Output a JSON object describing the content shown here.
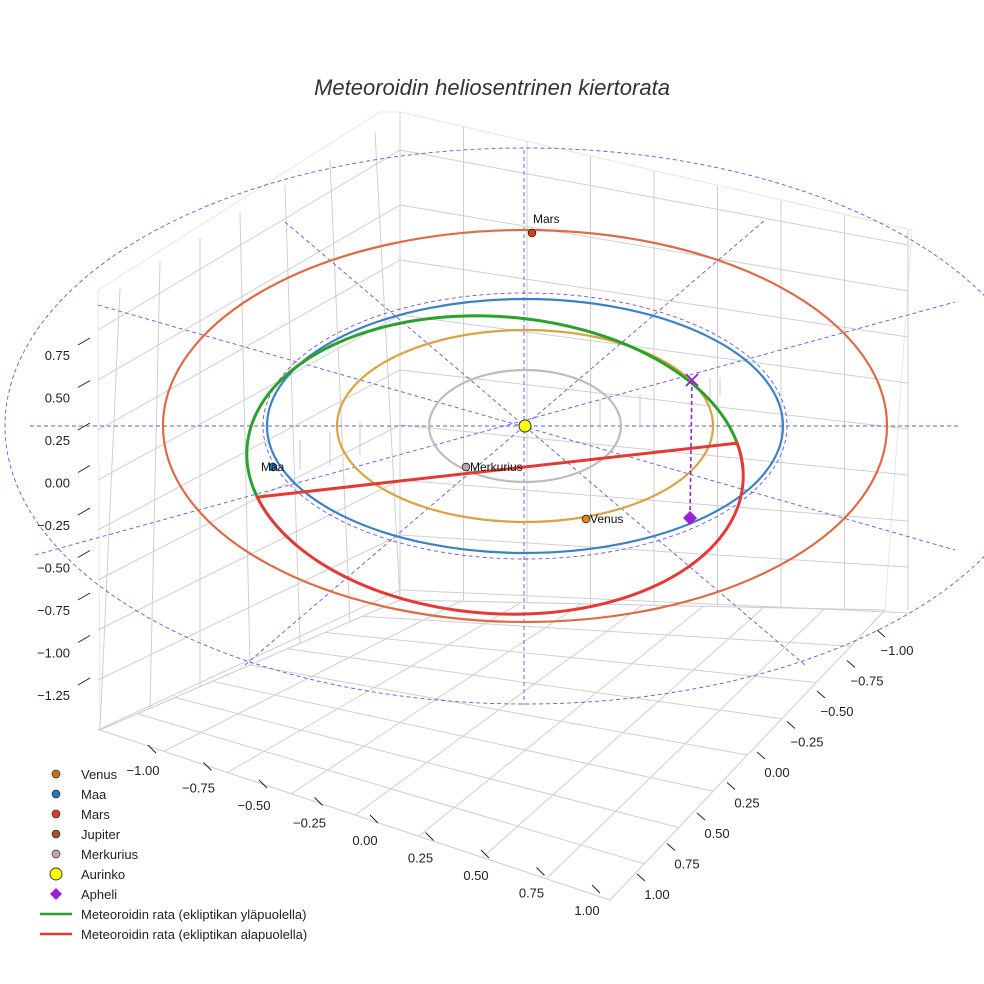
{
  "chart_data": {
    "type": "3d-orbit",
    "title": "Meteoroidin heliosentrinen kiertorata",
    "z_ticks": [
      "0.75",
      "0.50",
      "0.25",
      "0.00",
      "−0.25",
      "−0.50",
      "−0.75",
      "−1.00",
      "−1.25"
    ],
    "x_ticks": [
      "−1.00",
      "−0.75",
      "−0.50",
      "−0.25",
      "0.00",
      "0.25",
      "0.50",
      "0.75",
      "1.00"
    ],
    "y_ticks": [
      "−1.00",
      "−0.75",
      "−0.50",
      "−0.25",
      "0.00",
      "0.25",
      "0.50",
      "0.75",
      "1.00"
    ],
    "bodies": [
      {
        "name": "Mars",
        "label": "Mars",
        "color": "#d6411e"
      },
      {
        "name": "Maa",
        "label": "Maa",
        "color": "#1f77b4"
      },
      {
        "name": "Venus",
        "label": "Venus",
        "color": "#e08a1e"
      },
      {
        "name": "Merkurius",
        "label": "Merkurius",
        "color": "#b9a9a9"
      },
      {
        "name": "Aurinko",
        "color": "#ffff00"
      }
    ],
    "orbits": [
      {
        "name": "Merkurius",
        "color": "#bdbdbd"
      },
      {
        "name": "Venus",
        "color": "#d9a441"
      },
      {
        "name": "Maa",
        "color": "#3b82c4"
      },
      {
        "name": "Mars",
        "color": "#dd6b45"
      }
    ],
    "meteoroid": {
      "above_color": "#2ca02c",
      "below_color": "#e53935",
      "aphelion_color": "#9b1fd6"
    },
    "legend": [
      {
        "label": "Venus",
        "kind": "dot",
        "color": "#c8701c"
      },
      {
        "label": "Maa",
        "kind": "dot",
        "color": "#1f77b4"
      },
      {
        "label": "Mars",
        "kind": "dot",
        "color": "#d6411e"
      },
      {
        "label": "Jupiter",
        "kind": "dot",
        "color": "#a0522d"
      },
      {
        "label": "Merkurius",
        "kind": "dot",
        "color": "#c4a3a3"
      },
      {
        "label": "Aurinko",
        "kind": "sun",
        "color": "#ffff00"
      },
      {
        "label": "Apheli",
        "kind": "diamond",
        "color": "#9b1fd6"
      },
      {
        "label": "Meteoroidin rata (ekliptikan yläpuolella)",
        "kind": "line",
        "color": "#2ca02c"
      },
      {
        "label": "Meteoroidin rata (ekliptikan alapuolella)",
        "kind": "line",
        "color": "#e53935"
      }
    ]
  }
}
